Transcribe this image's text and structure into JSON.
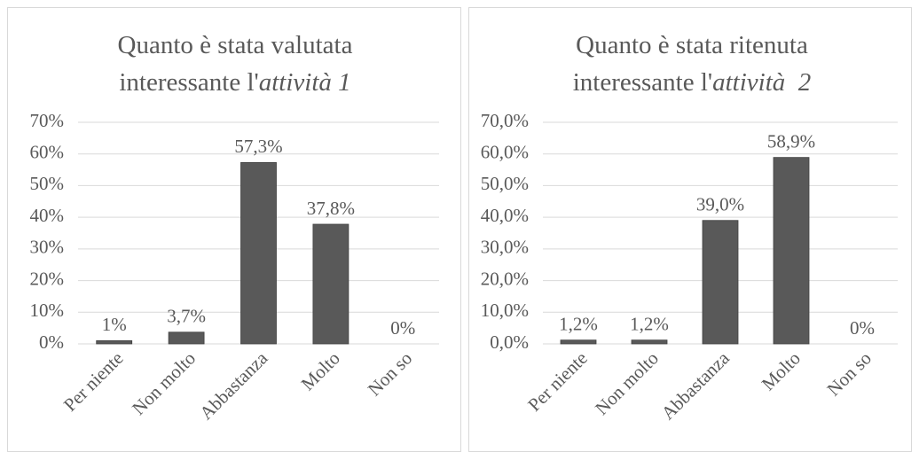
{
  "chart_data": [
    {
      "type": "bar",
      "title": [
        {
          "text": "Quanto è stata valutata interessante l'"
        },
        {
          "text": "attività 1",
          "italic": true
        }
      ],
      "categories": [
        "Per niente",
        "Non molto",
        "Abbastanza",
        "Molto",
        "Non so"
      ],
      "values": [
        1,
        3.7,
        57.3,
        37.8,
        0
      ],
      "value_labels": [
        "1%",
        "3,7%",
        "57,3%",
        "37,8%",
        "0%"
      ],
      "color": "#595959",
      "ylim": [
        0,
        70
      ],
      "yticks": [
        {
          "value": 0,
          "label": "0%"
        },
        {
          "value": 10,
          "label": "10%"
        },
        {
          "value": 20,
          "label": "20%"
        },
        {
          "value": 30,
          "label": "30%"
        },
        {
          "value": 40,
          "label": "40%"
        },
        {
          "value": 50,
          "label": "50%"
        },
        {
          "value": 60,
          "label": "60%"
        },
        {
          "value": 70,
          "label": "70%"
        }
      ],
      "grid": true
    },
    {
      "type": "bar",
      "title": [
        {
          "text": "Quanto è stata ritenuta interessante l'"
        },
        {
          "text": "attività  2",
          "italic": true
        }
      ],
      "categories": [
        "Per niente",
        "Non molto",
        "Abbastanza",
        "Molto",
        "Non so"
      ],
      "values": [
        1.2,
        1.2,
        39.0,
        58.9,
        0
      ],
      "value_labels": [
        "1,2%",
        "1,2%",
        "39,0%",
        "58,9%",
        "0%"
      ],
      "color": "#595959",
      "ylim": [
        0,
        70
      ],
      "yticks": [
        {
          "value": 0,
          "label": "0,0%"
        },
        {
          "value": 10,
          "label": "10,0%"
        },
        {
          "value": 20,
          "label": "20,0%"
        },
        {
          "value": 30,
          "label": "30,0%"
        },
        {
          "value": 40,
          "label": "40,0%"
        },
        {
          "value": 50,
          "label": "50,0%"
        },
        {
          "value": 60,
          "label": "60,0%"
        },
        {
          "value": 70,
          "label": "70,0%"
        }
      ],
      "grid": true
    }
  ]
}
